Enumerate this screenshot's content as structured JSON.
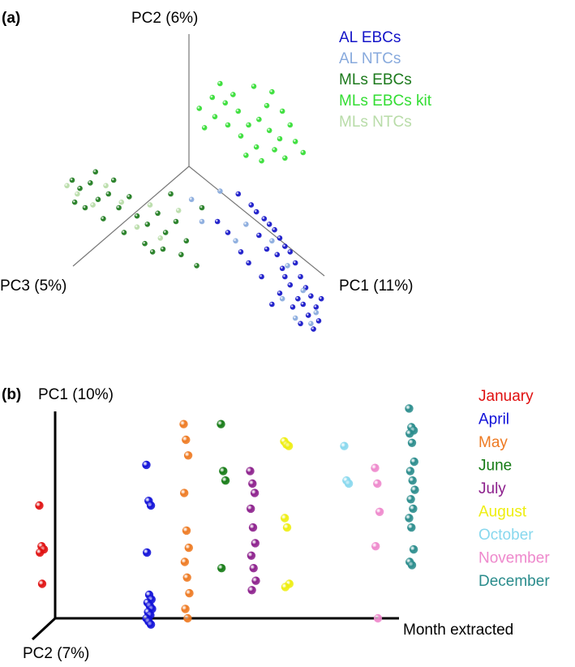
{
  "chart_data": [
    {
      "panel": "(a)",
      "type": "scatter",
      "title": "",
      "axes": {
        "pc1": "PC1 (11%)",
        "pc2": "PC2 (6%)",
        "pc3": "PC3 (5%)"
      },
      "legend_position": "top-right",
      "series": [
        {
          "name": "AL EBCs",
          "color": "#1414c8",
          "points": [
            [
              0.38,
              -0.2
            ],
            [
              0.48,
              -0.28
            ],
            [
              0.52,
              -0.33
            ],
            [
              0.58,
              -0.38
            ],
            [
              0.62,
              -0.42
            ],
            [
              0.66,
              -0.46
            ],
            [
              0.7,
              -0.52
            ],
            [
              0.74,
              -0.58
            ],
            [
              0.6,
              -0.6
            ],
            [
              0.68,
              -0.64
            ],
            [
              0.78,
              -0.62
            ],
            [
              0.82,
              -0.7
            ],
            [
              0.72,
              -0.74
            ],
            [
              0.86,
              -0.8
            ],
            [
              0.78,
              -0.86
            ],
            [
              0.9,
              -0.88
            ],
            [
              0.94,
              -0.94
            ],
            [
              0.84,
              -0.96
            ],
            [
              0.7,
              -0.92
            ],
            [
              0.98,
              -1.02
            ],
            [
              0.92,
              -1.08
            ],
            [
              1.0,
              -1.12
            ],
            [
              0.86,
              -1.14
            ],
            [
              0.64,
              -1.0
            ],
            [
              0.4,
              -0.62
            ],
            [
              0.3,
              -0.48
            ],
            [
              0.22,
              -0.4
            ],
            [
              0.54,
              -0.5
            ],
            [
              0.46,
              -0.7
            ],
            [
              0.96,
              -1.18
            ],
            [
              0.8,
              -1.02
            ],
            [
              0.74,
              -0.8
            ],
            [
              0.88,
              -1.0
            ],
            [
              0.56,
              -0.8
            ],
            [
              1.02,
              -0.96
            ]
          ]
        },
        {
          "name": "AL NTCs",
          "color": "#88aadd",
          "points": [
            [
              0.24,
              -0.18
            ],
            [
              0.44,
              -0.42
            ],
            [
              0.64,
              -0.54
            ],
            [
              0.76,
              -0.72
            ],
            [
              0.88,
              -0.9
            ],
            [
              0.98,
              -1.06
            ],
            [
              0.82,
              -1.1
            ],
            [
              0.1,
              -0.4
            ],
            [
              0.02,
              -0.24
            ],
            [
              0.36,
              -0.54
            ],
            [
              0.94,
              -1.14
            ],
            [
              0.72,
              -0.96
            ]
          ]
        },
        {
          "name": "MLs EBCs",
          "color": "#1d7a1d",
          "points": [
            [
              -0.9,
              -0.1
            ],
            [
              -0.84,
              -0.16
            ],
            [
              -0.76,
              -0.12
            ],
            [
              -0.7,
              -0.24
            ],
            [
              -0.62,
              -0.2
            ],
            [
              -0.54,
              -0.3
            ],
            [
              -0.46,
              -0.22
            ],
            [
              -0.4,
              -0.36
            ],
            [
              -0.32,
              -0.42
            ],
            [
              -0.24,
              -0.34
            ],
            [
              -0.18,
              -0.48
            ],
            [
              -0.1,
              -0.4
            ],
            [
              -0.02,
              -0.54
            ],
            [
              -0.8,
              -0.3
            ],
            [
              -0.66,
              -0.38
            ],
            [
              -0.5,
              -0.48
            ],
            [
              -0.34,
              -0.56
            ],
            [
              -0.2,
              -0.6
            ],
            [
              -0.06,
              -0.64
            ],
            [
              0.06,
              -0.72
            ],
            [
              -0.88,
              -0.26
            ],
            [
              -0.58,
              -0.1
            ],
            [
              -0.14,
              -0.2
            ],
            [
              -0.28,
              -0.62
            ],
            [
              -0.72,
              -0.04
            ],
            [
              0.1,
              -0.3
            ]
          ]
        },
        {
          "name": "MLs EBCs kit",
          "color": "#33dd33",
          "points": [
            [
              0.08,
              0.42
            ],
            [
              0.18,
              0.5
            ],
            [
              0.28,
              0.46
            ],
            [
              0.38,
              0.4
            ],
            [
              0.46,
              0.3
            ],
            [
              0.54,
              0.34
            ],
            [
              0.62,
              0.26
            ],
            [
              0.7,
              0.2
            ],
            [
              0.52,
              0.14
            ],
            [
              0.4,
              0.22
            ],
            [
              0.3,
              0.3
            ],
            [
              0.2,
              0.36
            ],
            [
              0.6,
              0.44
            ],
            [
              0.72,
              0.4
            ],
            [
              0.78,
              0.3
            ],
            [
              0.66,
              0.12
            ],
            [
              0.56,
              0.04
            ],
            [
              0.44,
              0.08
            ],
            [
              0.12,
              0.28
            ],
            [
              0.82,
              0.18
            ],
            [
              0.34,
              0.52
            ],
            [
              0.24,
              0.6
            ],
            [
              0.74,
              0.06
            ],
            [
              0.5,
              0.58
            ],
            [
              0.88,
              0.1
            ],
            [
              0.64,
              0.54
            ]
          ]
        },
        {
          "name": "MLs NTCs",
          "color": "#b8dca8",
          "points": [
            [
              -0.86,
              -0.2
            ],
            [
              -0.74,
              -0.28
            ],
            [
              -0.64,
              -0.14
            ],
            [
              -0.52,
              -0.26
            ],
            [
              -0.4,
              -0.44
            ],
            [
              -0.22,
              -0.52
            ],
            [
              -0.08,
              -0.32
            ],
            [
              -0.94,
              -0.14
            ],
            [
              -0.3,
              -0.28
            ]
          ]
        }
      ]
    },
    {
      "panel": "(b)",
      "type": "scatter",
      "title": "",
      "axes": {
        "pc1": "PC1 (10%)",
        "pc2": "PC2 (7%)",
        "month": "Month extracted"
      },
      "legend_position": "top-right",
      "series": [
        {
          "name": "January",
          "color": "#e01010",
          "x": 0,
          "y": [
            0.72,
            0.46,
            0.44,
            0.42,
            0.22
          ]
        },
        {
          "name": "April",
          "color": "#1010d8",
          "x": 1,
          "y": [
            0.98,
            0.75,
            0.72,
            0.42,
            0.15,
            0.12,
            0.1,
            0.08,
            0.06,
            0.04,
            0.02,
            0.0,
            -0.02,
            -0.04
          ]
        },
        {
          "name": "May",
          "color": "#ee7a22",
          "x": 2,
          "y": [
            1.24,
            1.14,
            1.04,
            0.8,
            0.56,
            0.45,
            0.36,
            0.26,
            0.16,
            0.06,
            0.0
          ]
        },
        {
          "name": "June",
          "color": "#137a13",
          "x": 3,
          "y": [
            1.24,
            0.94,
            0.88,
            0.32
          ]
        },
        {
          "name": "July",
          "color": "#8c1f8c",
          "x": 4,
          "y": [
            0.94,
            0.86,
            0.8,
            0.7,
            0.58,
            0.48,
            0.4,
            0.32,
            0.24,
            0.18
          ]
        },
        {
          "name": "August",
          "color": "#eeee10",
          "x": 5,
          "y": [
            1.13,
            1.11,
            1.1,
            0.64,
            0.58,
            0.22,
            0.2
          ]
        },
        {
          "name": "October",
          "color": "#88d8ee",
          "x": 6,
          "y": [
            1.1,
            0.88,
            0.86
          ]
        },
        {
          "name": "November",
          "color": "#ee88cc",
          "x": 7,
          "y": [
            0.96,
            0.86,
            0.68,
            0.46,
            0.0
          ]
        },
        {
          "name": "December",
          "color": "#2a8c8c",
          "x": 8,
          "y": [
            1.34,
            1.22,
            1.2,
            1.18,
            1.12,
            1.0,
            0.94,
            0.88,
            0.82,
            0.76,
            0.7,
            0.64,
            0.58,
            0.44,
            0.36,
            0.34
          ]
        }
      ]
    }
  ]
}
